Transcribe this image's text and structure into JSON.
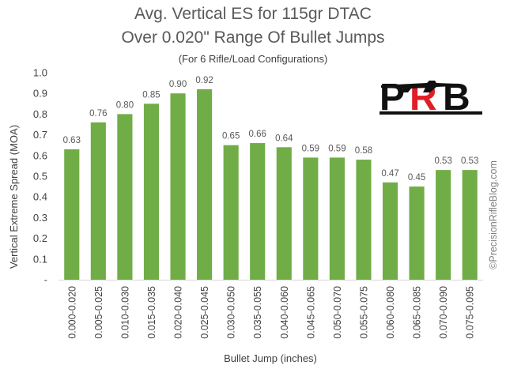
{
  "chart_data": {
    "type": "bar",
    "title_line1": "Avg. Vertical ES for 115gr DTAC",
    "title_line2": "Over 0.020\" Range Of Bullet Jumps",
    "subtitle": "(For 6 Rifle/Load Configurations)",
    "xlabel": "Bullet Jump (inches)",
    "ylabel": "Vertical Extreme Spread (MOA)",
    "ylim": [
      0,
      1.0
    ],
    "yticks": [
      "-",
      "0.1",
      "0.2",
      "0.3",
      "0.4",
      "0.5",
      "0.6",
      "0.7",
      "0.8",
      "0.9",
      "1.0"
    ],
    "categories": [
      "0.000-0.020",
      "0.005-0.025",
      "0.010-0.030",
      "0.015-0.035",
      "0.020-0.040",
      "0.025-0.045",
      "0.030-0.050",
      "0.035-0.055",
      "0.040-0.060",
      "0.045-0.065",
      "0.050-0.070",
      "0.055-0.075",
      "0.060-0.080",
      "0.065-0.085",
      "0.070-0.090",
      "0.075-0.095"
    ],
    "values": [
      0.63,
      0.76,
      0.8,
      0.85,
      0.9,
      0.92,
      0.65,
      0.66,
      0.64,
      0.59,
      0.59,
      0.58,
      0.47,
      0.45,
      0.53,
      0.53
    ],
    "value_labels": [
      "0.63",
      "0.76",
      "0.80",
      "0.85",
      "0.90",
      "0.92",
      "0.65",
      "0.66",
      "0.64",
      "0.59",
      "0.59",
      "0.58",
      "0.47",
      "0.45",
      "0.53",
      "0.53"
    ],
    "grid": false,
    "legend": "none",
    "bar_color": "#70AD47",
    "text_color": "#595959"
  },
  "watermark": "©PrecisionRifleBlog.com",
  "logo": {
    "letters": [
      "P",
      "R",
      "B"
    ],
    "accent_color": "#E21D25",
    "dark_color": "#111111"
  }
}
